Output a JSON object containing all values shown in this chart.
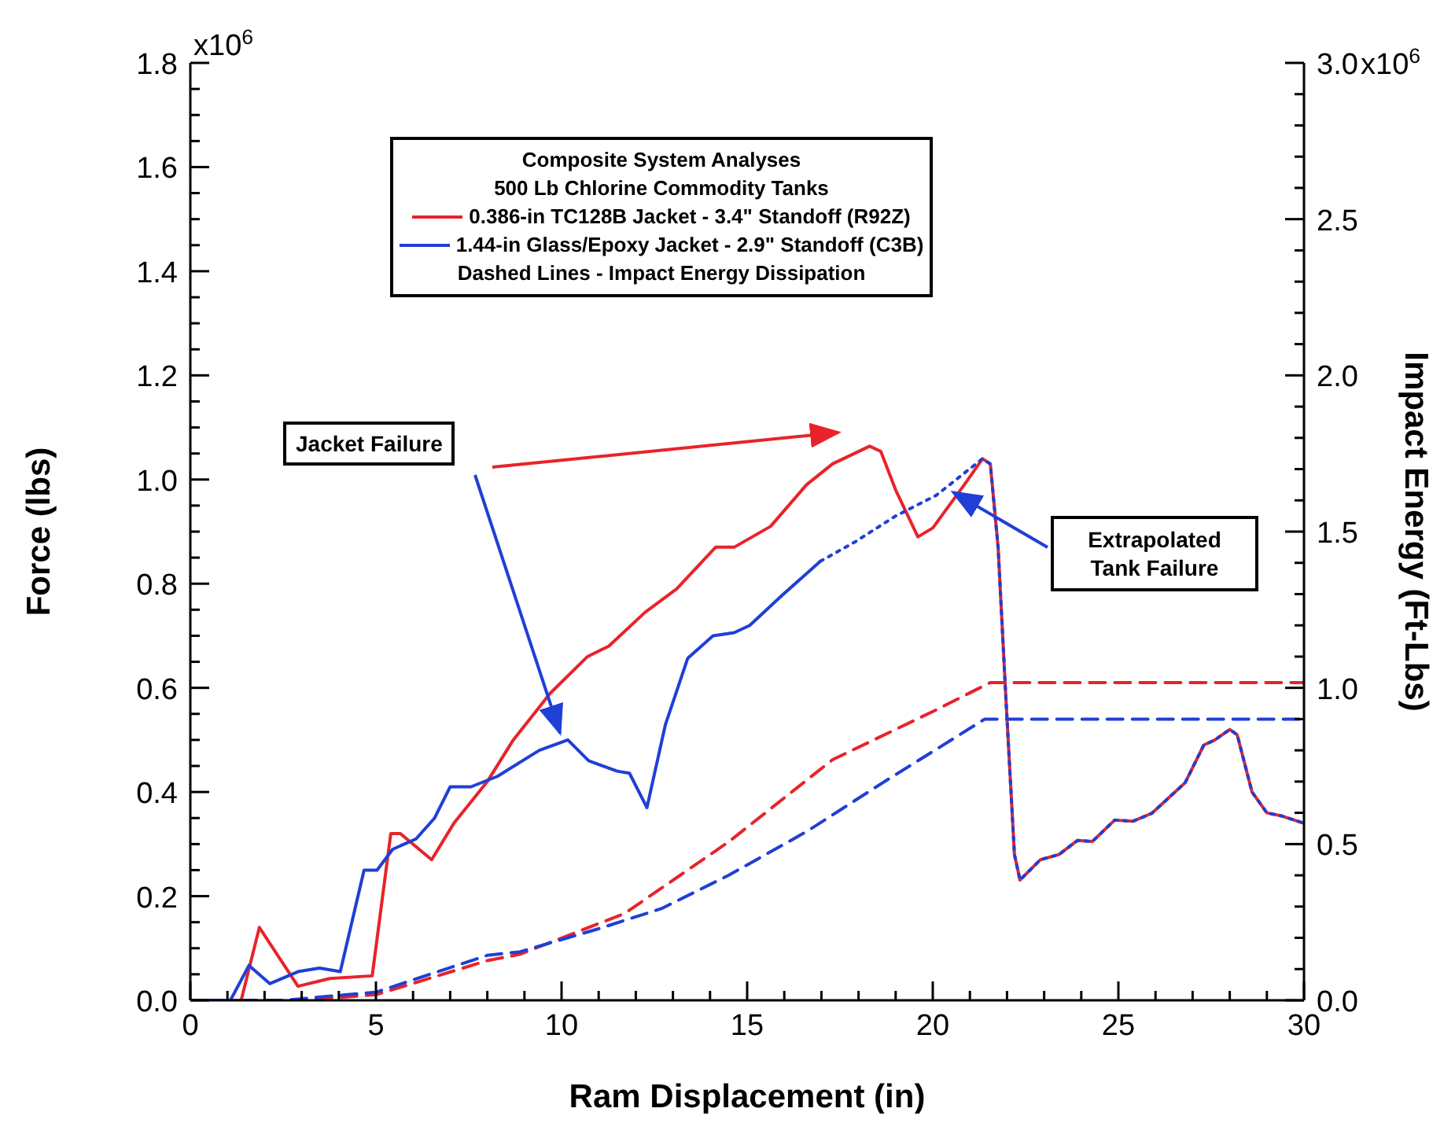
{
  "chart_data": {
    "type": "line",
    "xlabel": "Ram Displacement (in)",
    "ylabel": "Force (lbs)",
    "y2label": "Impact Energy (Ft-Lbs)",
    "legend_title": "Composite System Analyses",
    "legend": "top",
    "marker": "none",
    "grid": false,
    "xlim": [
      0,
      30
    ],
    "xticks": [
      0,
      {
        "value": 1,
        "label": null
      },
      {
        "value": 2,
        "label": null
      },
      {
        "value": 3,
        "label": null
      },
      {
        "value": 4,
        "label": null
      },
      5,
      {
        "value": 6,
        "label": null
      },
      {
        "value": 7,
        "label": null
      },
      {
        "value": 8,
        "label": null
      },
      {
        "value": 9,
        "label": null
      },
      10,
      {
        "value": 11,
        "label": null
      },
      {
        "value": 12,
        "label": null
      },
      {
        "value": 13,
        "label": null
      },
      {
        "value": 14,
        "label": null
      },
      15,
      {
        "value": 16,
        "label": null
      },
      {
        "value": 17,
        "label": null
      },
      {
        "value": 18,
        "label": null
      },
      {
        "value": 19,
        "label": null
      },
      20,
      {
        "value": 21,
        "label": null
      },
      {
        "value": 22,
        "label": null
      },
      {
        "value": 23,
        "label": null
      },
      {
        "value": 24,
        "label": null
      },
      25,
      {
        "value": 26,
        "label": null
      },
      {
        "value": 27,
        "label": null
      },
      {
        "value": 28,
        "label": null
      },
      {
        "value": 29,
        "label": null
      },
      30
    ],
    "ylim": [
      0,
      1.8
    ],
    "yticks": [
      {
        "value": 0,
        "label": "0.0"
      },
      {
        "value": 0.05,
        "label": null
      },
      {
        "value": 0.1,
        "label": null
      },
      {
        "value": 0.15,
        "label": null
      },
      0.2,
      {
        "value": 0.25,
        "label": null
      },
      {
        "value": 0.3,
        "label": null
      },
      {
        "value": 0.35,
        "label": null
      },
      0.4,
      {
        "value": 0.45,
        "label": null
      },
      {
        "value": 0.5,
        "label": null
      },
      {
        "value": 0.55,
        "label": null
      },
      0.6,
      {
        "value": 0.65,
        "label": null
      },
      {
        "value": 0.7,
        "label": null
      },
      {
        "value": 0.75,
        "label": null
      },
      0.8,
      {
        "value": 0.85,
        "label": null
      },
      {
        "value": 0.9,
        "label": null
      },
      {
        "value": 0.95,
        "label": null
      },
      {
        "value": 1,
        "label": "1.0"
      },
      {
        "value": 1.05,
        "label": null
      },
      {
        "value": 1.1,
        "label": null
      },
      {
        "value": 1.15,
        "label": null
      },
      1.2,
      {
        "value": 1.25,
        "label": null
      },
      {
        "value": 1.3,
        "label": null
      },
      {
        "value": 1.35,
        "label": null
      },
      1.4,
      {
        "value": 1.45,
        "label": null
      },
      {
        "value": 1.5,
        "label": null
      },
      {
        "value": 1.55,
        "label": null
      },
      1.6,
      {
        "value": 1.65,
        "label": null
      },
      {
        "value": 1.7,
        "label": null
      },
      {
        "value": 1.75,
        "label": null
      },
      {
        "value": 1.8,
        "label": "1.8"
      }
    ],
    "y2lim": [
      0,
      3
    ],
    "y2ticks": [
      {
        "value": 0,
        "label": "0.0"
      },
      {
        "value": 0.1,
        "label": null
      },
      {
        "value": 0.2,
        "label": null
      },
      {
        "value": 0.3,
        "label": null
      },
      {
        "value": 0.4,
        "label": null
      },
      0.5,
      {
        "value": 0.6,
        "label": null
      },
      {
        "value": 0.7,
        "label": null
      },
      {
        "value": 0.8,
        "label": null
      },
      {
        "value": 0.9,
        "label": null
      },
      {
        "value": 1,
        "label": "1.0"
      },
      {
        "value": 1.1,
        "label": null
      },
      {
        "value": 1.2,
        "label": null
      },
      {
        "value": 1.3,
        "label": null
      },
      {
        "value": 1.4,
        "label": null
      },
      1.5,
      {
        "value": 1.6,
        "label": null
      },
      {
        "value": 1.7,
        "label": null
      },
      {
        "value": 1.8,
        "label": null
      },
      {
        "value": 1.9,
        "label": null
      },
      {
        "value": 2,
        "label": "2.0"
      },
      {
        "value": 2.1,
        "label": null
      },
      {
        "value": 2.2,
        "label": null
      },
      {
        "value": 2.3,
        "label": null
      },
      {
        "value": 2.4,
        "label": null
      },
      2.5,
      {
        "value": 2.6,
        "label": null
      },
      {
        "value": 2.7,
        "label": null
      },
      {
        "value": 2.8,
        "label": null
      },
      {
        "value": 2.9,
        "label": null
      },
      {
        "value": 3,
        "label": "3.0"
      }
    ],
    "annotations": [
      "500 Lb Chlorine Commodity Tanks",
      "Dashed Lines - Impact Energy Dissipation",
      "Jacket Failure",
      "Extrapolated Tank Failure",
      "x10$^{6}$",
      "x10$^{6}$"
    ],
    "series": [
      {
        "name": "0.386-in TC128B Jacket - 3.4\" Standoff (R92Z)",
        "color": "#e8232a",
        "line_style": "solid",
        "x": [
          0,
          1.37,
          1.86,
          2.9,
          3.76,
          4.9,
          5.4,
          5.66,
          6.5,
          7.1,
          8.0,
          8.7,
          9.7,
          10.7,
          11.27,
          12.25,
          13.1,
          14.15,
          14.65,
          15.63,
          16.6,
          17.3,
          18.3,
          18.6,
          19.0,
          19.6,
          20.0,
          20.85,
          21.34,
          21.55,
          21.76,
          21.97,
          22.2,
          22.35,
          22.9,
          23.4,
          23.9,
          24.3,
          24.9,
          25.4,
          25.9,
          26.8,
          27.3,
          27.6,
          28.0,
          28.2,
          28.6,
          29.0,
          29.4,
          30
        ],
        "values": [
          0,
          0,
          0.14,
          0.027,
          0.042,
          0.047,
          0.32,
          0.32,
          0.27,
          0.34,
          0.42,
          0.5,
          0.59,
          0.66,
          0.68,
          0.745,
          0.79,
          0.87,
          0.87,
          0.91,
          0.99,
          1.03,
          1.064,
          1.054,
          0.98,
          0.89,
          0.907,
          0.99,
          1.04,
          1.03,
          0.87,
          0.58,
          0.28,
          0.231,
          0.27,
          0.28,
          0.307,
          0.305,
          0.346,
          0.344,
          0.359,
          0.418,
          0.49,
          0.5,
          0.52,
          0.51,
          0.4,
          0.36,
          0.354,
          0.34
        ]
      },
      {
        "name": "1.44-in Glass/Epoxy Jacket - 2.9\" Standoff (C3B)",
        "color": "#1f3fd6",
        "line_style": "solid",
        "x": [
          0,
          1.08,
          1.58,
          2.14,
          2.9,
          3.48,
          4.04,
          4.68,
          5.03,
          5.45,
          6.08,
          6.58,
          7.0,
          7.56,
          8.27,
          9.4,
          10.17,
          10.73,
          11.5,
          11.83,
          12.3,
          12.8,
          13.4,
          14.08,
          14.65,
          15.07,
          15.9,
          16.97
        ],
        "values": [
          0,
          0,
          0.067,
          0.032,
          0.055,
          0.062,
          0.055,
          0.25,
          0.25,
          0.29,
          0.31,
          0.35,
          0.41,
          0.41,
          0.43,
          0.48,
          0.5,
          0.46,
          0.44,
          0.436,
          0.37,
          0.53,
          0.657,
          0.7,
          0.706,
          0.72,
          0.775,
          0.843
        ]
      },
      {
        "color": "#1f3fd6",
        "line_style": "dotted",
        "x": [
          16.97,
          17.9,
          19.0,
          20.1,
          21.34,
          21.55,
          21.76,
          21.97,
          22.2,
          22.35,
          22.9,
          23.4,
          23.9,
          24.3,
          24.9,
          25.4,
          25.9,
          26.8,
          27.3,
          27.6,
          28.0,
          28.2,
          28.6,
          29.0,
          29.4,
          30
        ],
        "values": [
          0.843,
          0.88,
          0.93,
          0.97,
          1.04,
          1.03,
          0.87,
          0.58,
          0.28,
          0.231,
          0.27,
          0.28,
          0.307,
          0.305,
          0.346,
          0.344,
          0.359,
          0.418,
          0.49,
          0.5,
          0.52,
          0.51,
          0.4,
          0.36,
          0.354,
          0.34
        ]
      },
      {
        "color": "#e8232a",
        "line_style": "dashed",
        "axis": "y2",
        "x": [
          0,
          3,
          5,
          8,
          8.87,
          11.7,
          14.5,
          17.3,
          20.1,
          21.55,
          30
        ],
        "values": [
          0,
          0,
          0.018,
          0.127,
          0.147,
          0.278,
          0.507,
          0.77,
          0.93,
          1.017,
          1.017
        ]
      },
      {
        "color": "#1f3fd6",
        "line_style": "dashed",
        "axis": "y2",
        "x": [
          0,
          2.5,
          5,
          8,
          8.87,
          11,
          12.7,
          14.5,
          16.6,
          18.7,
          21.4,
          30
        ],
        "values": [
          0,
          0,
          0.026,
          0.144,
          0.155,
          0.229,
          0.294,
          0.4,
          0.54,
          0.7,
          0.9,
          0.9
        ]
      }
    ]
  }
}
